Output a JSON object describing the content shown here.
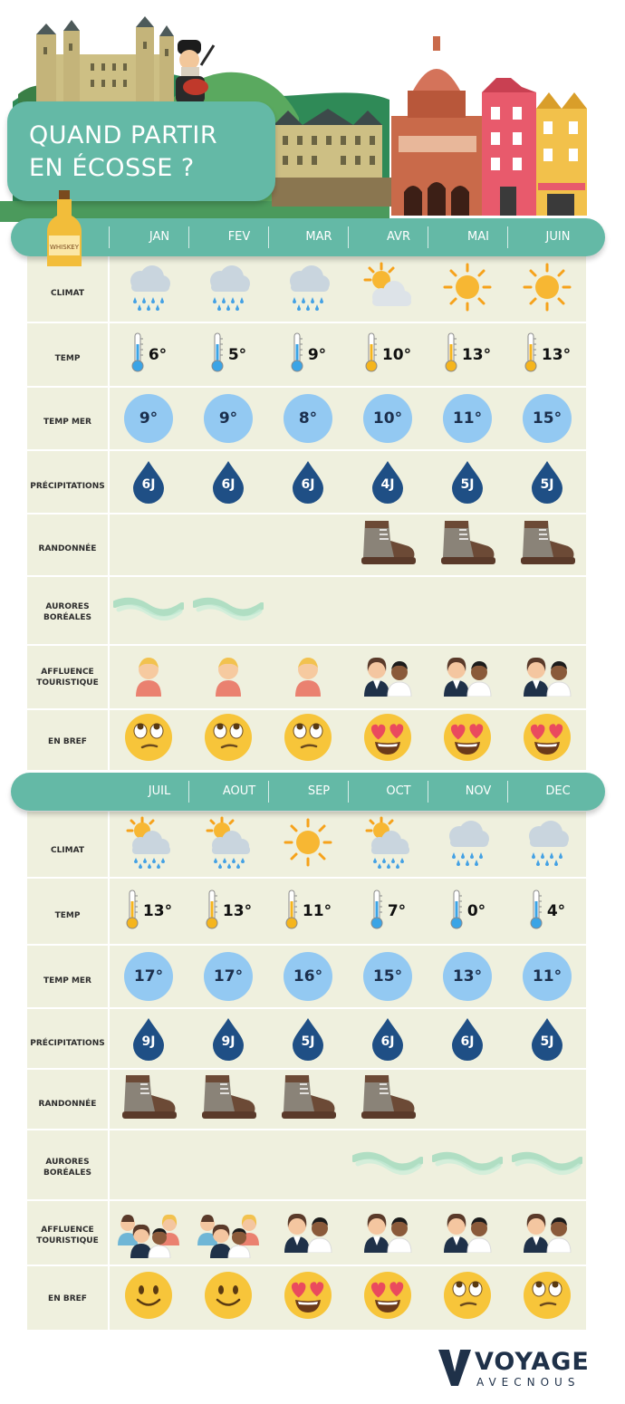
{
  "title": {
    "line1": "QUAND PARTIR",
    "line2": "EN ÉCOSSE ?"
  },
  "whiskey_label": "WHISKEY",
  "row_labels": {
    "climat": "CLIMAT",
    "temp": "TEMP",
    "temp_mer": "TEMP MER",
    "precipitations": "PRÉCIPITATIONS",
    "randonnee": "RANDONNÉE",
    "aurores": [
      "AURORES",
      "BORÉALES"
    ],
    "affluence": [
      "AFFLUENCE",
      "TOURISTIQUE"
    ],
    "en_bref": "EN BREF"
  },
  "sections": [
    {
      "months": [
        "JAN",
        "FEV",
        "MAR",
        "AVR",
        "MAI",
        "JUIN"
      ],
      "climat": [
        "rain-cloud-icon",
        "rain-cloud-icon",
        "rain-cloud-icon",
        "sun-cloud-icon",
        "sun-icon",
        "sun-icon"
      ],
      "temp": [
        "6°",
        "5°",
        "9°",
        "10°",
        "13°",
        "13°"
      ],
      "thermo_color": [
        "#3aa4e6",
        "#3aa4e6",
        "#3aa4e6",
        "#f5b51d",
        "#f5b51d",
        "#f5b51d"
      ],
      "sea": [
        "9°",
        "9°",
        "8°",
        "10°",
        "11°",
        "15°"
      ],
      "rain_days": [
        "6J",
        "6J",
        "6J",
        "4J",
        "5J",
        "5J"
      ],
      "hiking": [
        false,
        false,
        false,
        true,
        true,
        true
      ],
      "aurora": [
        true,
        true,
        false,
        false,
        false,
        false
      ],
      "crowd": [
        "one-person-icon",
        "one-person-icon",
        "one-person-icon",
        "two-people-icon",
        "two-people-icon",
        "two-people-icon"
      ],
      "verdict": [
        "eye-roll-face-icon",
        "eye-roll-face-icon",
        "eye-roll-face-icon",
        "heart-eyes-face-icon",
        "heart-eyes-face-icon",
        "heart-eyes-face-icon"
      ]
    },
    {
      "months": [
        "JUIL",
        "AOUT",
        "SEP",
        "OCT",
        "NOV",
        "DEC"
      ],
      "climat": [
        "sun-rain-cloud-icon",
        "sun-rain-cloud-icon",
        "sun-icon",
        "sun-rain-cloud-icon",
        "rain-cloud-icon",
        "rain-cloud-icon"
      ],
      "temp": [
        "13°",
        "13°",
        "11°",
        "7°",
        "0°",
        "4°"
      ],
      "thermo_color": [
        "#f5b51d",
        "#f5b51d",
        "#f5b51d",
        "#3aa4e6",
        "#3aa4e6",
        "#3aa4e6"
      ],
      "sea": [
        "17°",
        "17°",
        "16°",
        "15°",
        "13°",
        "11°"
      ],
      "rain_days": [
        "9J",
        "9J",
        "5J",
        "6J",
        "6J",
        "5J"
      ],
      "hiking": [
        true,
        true,
        true,
        true,
        false,
        false
      ],
      "aurora": [
        false,
        false,
        false,
        true,
        true,
        true
      ],
      "crowd": [
        "crowd-icon",
        "crowd-icon",
        "two-people-icon",
        "two-people-icon",
        "two-people-icon",
        "two-people-icon"
      ],
      "verdict": [
        "smile-face-icon",
        "smile-face-icon",
        "heart-eyes-face-icon",
        "heart-eyes-face-icon",
        "eye-roll-face-icon",
        "eye-roll-face-icon"
      ]
    }
  ],
  "logo": {
    "main": "VOYAGE",
    "sub": "AVECNOUS"
  },
  "colors": {
    "teal": "#64b9a6",
    "table": "#eff0de",
    "sea": "#93c9f2",
    "drop": "#1f4f85",
    "emoji": "#f7c53a"
  }
}
